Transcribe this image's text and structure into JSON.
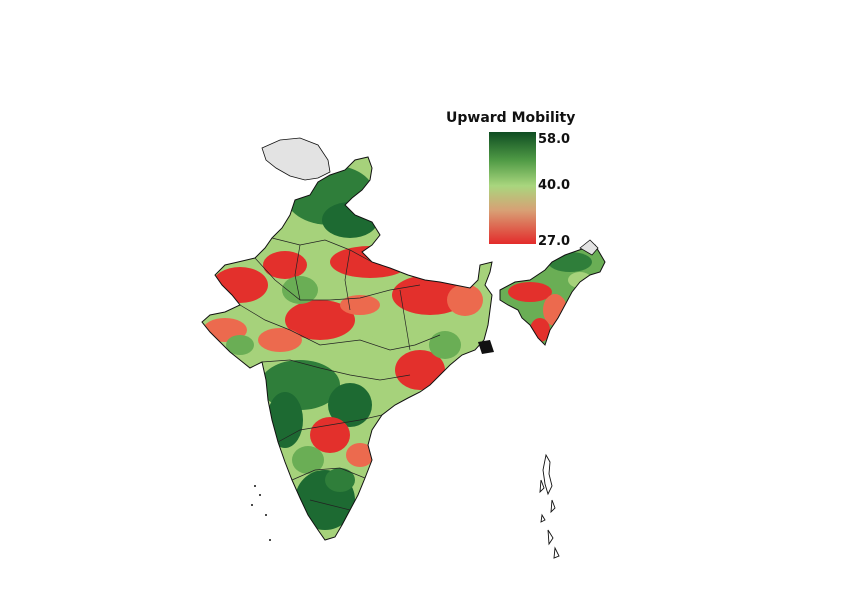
{
  "legend": {
    "title": "Upward Mobility",
    "max_label": "58.0",
    "mid_label": "40.0",
    "min_label": "27.0",
    "colors": {
      "high": "#0f4d22",
      "mid": "#a9d67e",
      "low": "#e32b2b"
    }
  },
  "map": {
    "region": "India",
    "colors": {
      "no_data": "#e3e3e3",
      "border": "#111111",
      "dark_green": "#1d6a32",
      "green": "#4f9e47",
      "light_green": "#a6d27b",
      "red": "#e3302c",
      "orange_red": "#ec6a4e"
    }
  }
}
